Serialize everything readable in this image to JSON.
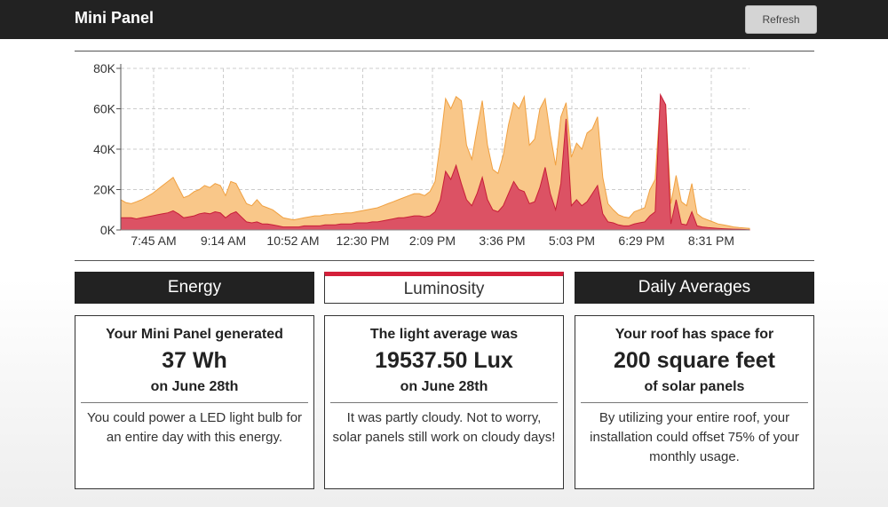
{
  "header": {
    "title": "Mini Panel",
    "refresh_label": "Refresh"
  },
  "chart_data": {
    "type": "area",
    "title": "",
    "xlabel": "",
    "ylabel": "",
    "ylim": [
      0,
      80000
    ],
    "y_ticks": [
      "0K",
      "20K",
      "40K",
      "60K",
      "80K"
    ],
    "x_ticks": [
      "7:45 AM",
      "9:14 AM",
      "10:52 AM",
      "12:30 PM",
      "2:09 PM",
      "3:36 PM",
      "5:03 PM",
      "6:29 PM",
      "8:31 PM"
    ],
    "grid": true,
    "colors": {
      "upper": "#f9c789",
      "upper_line": "#f0a040",
      "lower": "#dc5264",
      "lower_line": "#c81e37"
    },
    "series": [
      {
        "name": "upper",
        "values": [
          15000,
          13500,
          13000,
          14000,
          15000,
          16500,
          18000,
          20000,
          22000,
          24000,
          26000,
          21000,
          16000,
          17000,
          19000,
          20000,
          22000,
          21000,
          23000,
          22000,
          17000,
          24000,
          23000,
          18000,
          13000,
          12000,
          15000,
          12000,
          11000,
          10000,
          8000,
          6000,
          5500,
          5000,
          5500,
          6000,
          6500,
          7000,
          7000,
          7500,
          7500,
          8000,
          8000,
          8500,
          8500,
          9000,
          9500,
          10000,
          10500,
          11000,
          12000,
          13000,
          14000,
          15000,
          16000,
          17000,
          18000,
          18000,
          17000,
          19000,
          24000,
          43000,
          65000,
          60000,
          66000,
          64000,
          42000,
          35000,
          50000,
          64000,
          42000,
          30000,
          28000,
          37000,
          52000,
          63000,
          60000,
          66000,
          42000,
          45000,
          60000,
          65000,
          47000,
          32000,
          56000,
          63000,
          36000,
          43000,
          40000,
          48000,
          50000,
          56000,
          26000,
          13000,
          10000,
          7500,
          6500,
          6000,
          9000,
          10000,
          11000,
          20000,
          25000,
          65000,
          62000,
          13000,
          27000,
          14000,
          12000,
          23000,
          8000,
          6000,
          5000,
          4000,
          3000,
          2500,
          2000,
          1500,
          1200,
          1000,
          800
        ]
      },
      {
        "name": "lower",
        "values": [
          6000,
          6000,
          6000,
          5500,
          6000,
          6500,
          7000,
          7500,
          8000,
          8500,
          9500,
          8000,
          6000,
          6500,
          7000,
          8000,
          8500,
          8000,
          9000,
          8500,
          6000,
          8000,
          9000,
          6500,
          4000,
          3500,
          4000,
          3000,
          3000,
          2500,
          2000,
          1500,
          1500,
          1500,
          1500,
          2000,
          2000,
          2000,
          2000,
          2500,
          2500,
          2500,
          3000,
          3000,
          3000,
          3500,
          3500,
          3500,
          4000,
          4000,
          4500,
          5000,
          5500,
          6000,
          6000,
          6500,
          7000,
          7000,
          6500,
          7000,
          9000,
          15000,
          29000,
          25000,
          32000,
          23000,
          15000,
          12000,
          18000,
          26000,
          15000,
          10000,
          9000,
          12000,
          18000,
          24000,
          20000,
          19000,
          13000,
          14000,
          21000,
          31000,
          18000,
          10000,
          23000,
          55000,
          12000,
          15000,
          12000,
          14000,
          18000,
          22000,
          8000,
          4000,
          3500,
          2500,
          2000,
          2000,
          3000,
          3500,
          4000,
          7000,
          9000,
          67000,
          62000,
          3000,
          15000,
          3000,
          2500,
          9000,
          2000,
          1500,
          1200,
          1000,
          800,
          600,
          500,
          400,
          300,
          200,
          100
        ]
      }
    ]
  },
  "tabs": [
    {
      "label": "Energy"
    },
    {
      "label": "Luminosity"
    },
    {
      "label": "Daily Averages"
    }
  ],
  "cards": [
    {
      "head": "Your Mini Panel generated",
      "value": "37 Wh",
      "sub": "on June 28th",
      "body": "You could power a LED light bulb for an entire day with this energy."
    },
    {
      "head": "The light average was",
      "value": "19537.50 Lux",
      "sub": "on June 28th",
      "body": "It was partly cloudy. Not to worry, solar panels still work on cloudy days!"
    },
    {
      "head": "Your roof has space for",
      "value": "200 square feet",
      "sub": "of solar panels",
      "body": "By utilizing your entire roof, your installation could offset 75% of your monthly usage."
    }
  ]
}
